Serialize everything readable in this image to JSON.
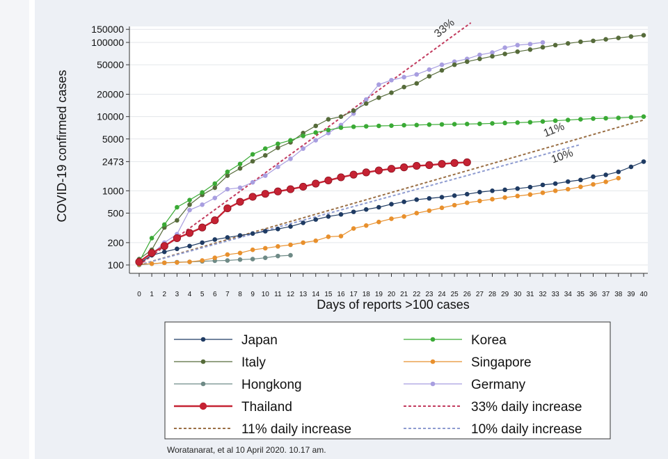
{
  "chart_data": {
    "type": "line",
    "yscale": "log",
    "ylabel": "COVID-19 confirmed cases",
    "xlabel": "Days of reports >100 cases",
    "ylim": [
      90,
      150000
    ],
    "xlim": [
      0,
      40
    ],
    "y_ticks": [
      100,
      200,
      500,
      1000,
      2473,
      5000,
      10000,
      20000,
      50000,
      100000,
      150000
    ],
    "y_tick_labels": [
      "100",
      "200",
      "500",
      "1000",
      "2473",
      "5000",
      "10000",
      "20000",
      "50000",
      "100000",
      "150000"
    ],
    "x_ticks": [
      0,
      1,
      2,
      3,
      4,
      5,
      6,
      7,
      8,
      9,
      10,
      11,
      12,
      13,
      14,
      15,
      16,
      17,
      18,
      19,
      20,
      21,
      22,
      23,
      24,
      25,
      26,
      27,
      28,
      29,
      30,
      31,
      32,
      33,
      34,
      35,
      36,
      37,
      38,
      39,
      40
    ],
    "grid": "horizontal",
    "series": [
      {
        "name": "Japan",
        "key": "japan",
        "color": "#1f3b63",
        "marker": "dot",
        "x": [
          0,
          1,
          2,
          3,
          4,
          5,
          6,
          7,
          8,
          9,
          10,
          11,
          12,
          13,
          14,
          15,
          16,
          17,
          18,
          19,
          20,
          21,
          22,
          23,
          24,
          25,
          26,
          27,
          28,
          29,
          30,
          31,
          32,
          33,
          34,
          35,
          36,
          37,
          38,
          39,
          40
        ],
        "y": [
          105,
          135,
          150,
          165,
          180,
          200,
          220,
          235,
          250,
          265,
          285,
          305,
          330,
          370,
          410,
          450,
          480,
          520,
          560,
          600,
          660,
          710,
          760,
          790,
          820,
          860,
          900,
          960,
          1000,
          1030,
          1070,
          1120,
          1200,
          1250,
          1330,
          1400,
          1550,
          1640,
          1800,
          2100,
          2473
        ]
      },
      {
        "name": "Korea",
        "key": "korea",
        "color": "#3aaa35",
        "marker": "dot",
        "x": [
          0,
          1,
          2,
          3,
          4,
          5,
          6,
          7,
          8,
          9,
          10,
          11,
          12,
          13,
          14,
          15,
          16,
          17,
          18,
          19,
          20,
          21,
          22,
          23,
          24,
          25,
          26,
          27,
          28,
          29,
          30,
          31,
          32,
          33,
          34,
          35,
          36,
          37,
          38,
          39,
          40
        ],
        "y": [
          110,
          230,
          350,
          600,
          750,
          950,
          1250,
          1800,
          2300,
          3100,
          3700,
          4300,
          4800,
          5500,
          6100,
          6600,
          7100,
          7300,
          7400,
          7500,
          7550,
          7650,
          7700,
          7800,
          7850,
          7900,
          7950,
          8000,
          8100,
          8200,
          8300,
          8400,
          8600,
          8800,
          9000,
          9200,
          9400,
          9500,
          9600,
          9800,
          10000
        ]
      },
      {
        "name": "Italy",
        "key": "italy",
        "color": "#566b3a",
        "marker": "dot",
        "x": [
          0,
          1,
          2,
          3,
          4,
          5,
          6,
          7,
          8,
          9,
          10,
          11,
          12,
          13,
          14,
          15,
          16,
          17,
          18,
          19,
          20,
          21,
          22,
          23,
          24,
          25,
          26,
          27,
          28,
          29,
          30,
          31,
          32,
          33,
          34,
          35,
          36,
          37,
          38,
          39,
          40
        ],
        "y": [
          120,
          160,
          320,
          400,
          650,
          880,
          1100,
          1600,
          2000,
          2500,
          3000,
          3800,
          4500,
          6000,
          7500,
          9200,
          10000,
          12000,
          15000,
          18000,
          21000,
          25000,
          28000,
          35000,
          42000,
          50000,
          55000,
          60000,
          65000,
          70000,
          75000,
          80000,
          86000,
          92000,
          97000,
          102000,
          105000,
          110000,
          115000,
          120000,
          125000
        ]
      },
      {
        "name": "Singapore",
        "key": "singapore",
        "color": "#e8902d",
        "marker": "dot",
        "x": [
          0,
          1,
          2,
          3,
          4,
          5,
          6,
          7,
          8,
          9,
          10,
          11,
          12,
          13,
          14,
          15,
          16,
          17,
          18,
          19,
          20,
          21,
          22,
          23,
          24,
          25,
          26,
          27,
          28,
          29,
          30,
          31,
          32,
          33,
          34,
          35,
          36,
          37,
          38
        ],
        "y": [
          102,
          104,
          107,
          108,
          110,
          115,
          125,
          138,
          145,
          160,
          168,
          178,
          187,
          200,
          212,
          240,
          245,
          310,
          340,
          380,
          420,
          450,
          500,
          540,
          590,
          640,
          690,
          730,
          770,
          810,
          850,
          890,
          940,
          1000,
          1050,
          1130,
          1220,
          1320,
          1480
        ]
      },
      {
        "name": "Hongkong",
        "key": "hongkong",
        "color": "#6e8a86",
        "marker": "dot",
        "x": [
          0,
          1,
          2,
          3,
          4,
          5,
          6,
          7,
          8,
          9,
          10,
          11,
          12
        ],
        "y": [
          100,
          104,
          107,
          109,
          110,
          112,
          114,
          115,
          118,
          120,
          125,
          132,
          135
        ]
      },
      {
        "name": "Germany",
        "key": "germany",
        "color": "#a89ee0",
        "marker": "dot",
        "x": [
          0,
          1,
          2,
          3,
          4,
          5,
          6,
          7,
          8,
          9,
          10,
          11,
          12,
          13,
          14,
          15,
          16,
          17,
          18,
          19,
          20,
          21,
          22,
          23,
          24,
          25,
          26,
          27,
          28,
          29,
          30,
          31,
          32
        ],
        "y": [
          110,
          140,
          200,
          260,
          550,
          650,
          800,
          1050,
          1100,
          1300,
          1600,
          2100,
          2700,
          3700,
          4800,
          6000,
          7700,
          11000,
          17000,
          27000,
          31000,
          34000,
          37000,
          43000,
          50000,
          55000,
          60000,
          68000,
          73000,
          85000,
          92000,
          95000,
          100000
        ]
      },
      {
        "name": "Thailand",
        "key": "thailand",
        "color": "#c52233",
        "marker": "big-dot",
        "x": [
          0,
          1,
          2,
          3,
          4,
          5,
          6,
          7,
          8,
          9,
          10,
          11,
          12,
          13,
          14,
          15,
          16,
          17,
          18,
          19,
          20,
          21,
          22,
          23,
          24,
          25,
          26
        ],
        "y": [
          110,
          145,
          180,
          230,
          270,
          320,
          400,
          580,
          710,
          830,
          910,
          980,
          1050,
          1135,
          1250,
          1380,
          1520,
          1650,
          1770,
          1880,
          1980,
          2070,
          2170,
          2220,
          2300,
          2370,
          2420
        ]
      },
      {
        "name": "33% daily increase",
        "key": "ref33",
        "color": "#c23b5e",
        "dash": "dashed",
        "x": [
          0,
          26.3
        ],
        "y": [
          100,
          184000
        ]
      },
      {
        "name": "11% daily increase",
        "key": "ref11",
        "color": "#9a6f45",
        "dash": "dashed",
        "x": [
          0,
          40
        ],
        "y": [
          100,
          9000
        ]
      },
      {
        "name": "10% daily increase",
        "key": "ref10",
        "color": "#8e9bd0",
        "dash": "dashed",
        "x": [
          0,
          35
        ],
        "y": [
          100,
          4200
        ]
      }
    ],
    "annotations": [
      {
        "text": "33%",
        "x": 23.7,
        "y": 115000,
        "rotate": -40
      },
      {
        "text": "11%",
        "x": 32.2,
        "y": 5300,
        "rotate": -22
      },
      {
        "text": "10%",
        "x": 32.8,
        "y": 2350,
        "rotate": -20
      }
    ],
    "legend": {
      "position": "bottom",
      "entries": [
        {
          "key": "japan",
          "label": "Japan"
        },
        {
          "key": "korea",
          "label": "Korea"
        },
        {
          "key": "italy",
          "label": "Italy"
        },
        {
          "key": "singapore",
          "label": "Singapore"
        },
        {
          "key": "hongkong",
          "label": "Hongkong"
        },
        {
          "key": "germany",
          "label": "Germany"
        },
        {
          "key": "thailand",
          "label": "Thailand"
        },
        {
          "key": "ref33",
          "label": "33% daily increase"
        },
        {
          "key": "ref11",
          "label": "11% daily increase"
        },
        {
          "key": "ref10",
          "label": "10% daily increase"
        }
      ]
    }
  },
  "source_note": "Woratanarat, et al 10 April 2020. 10.17 am."
}
